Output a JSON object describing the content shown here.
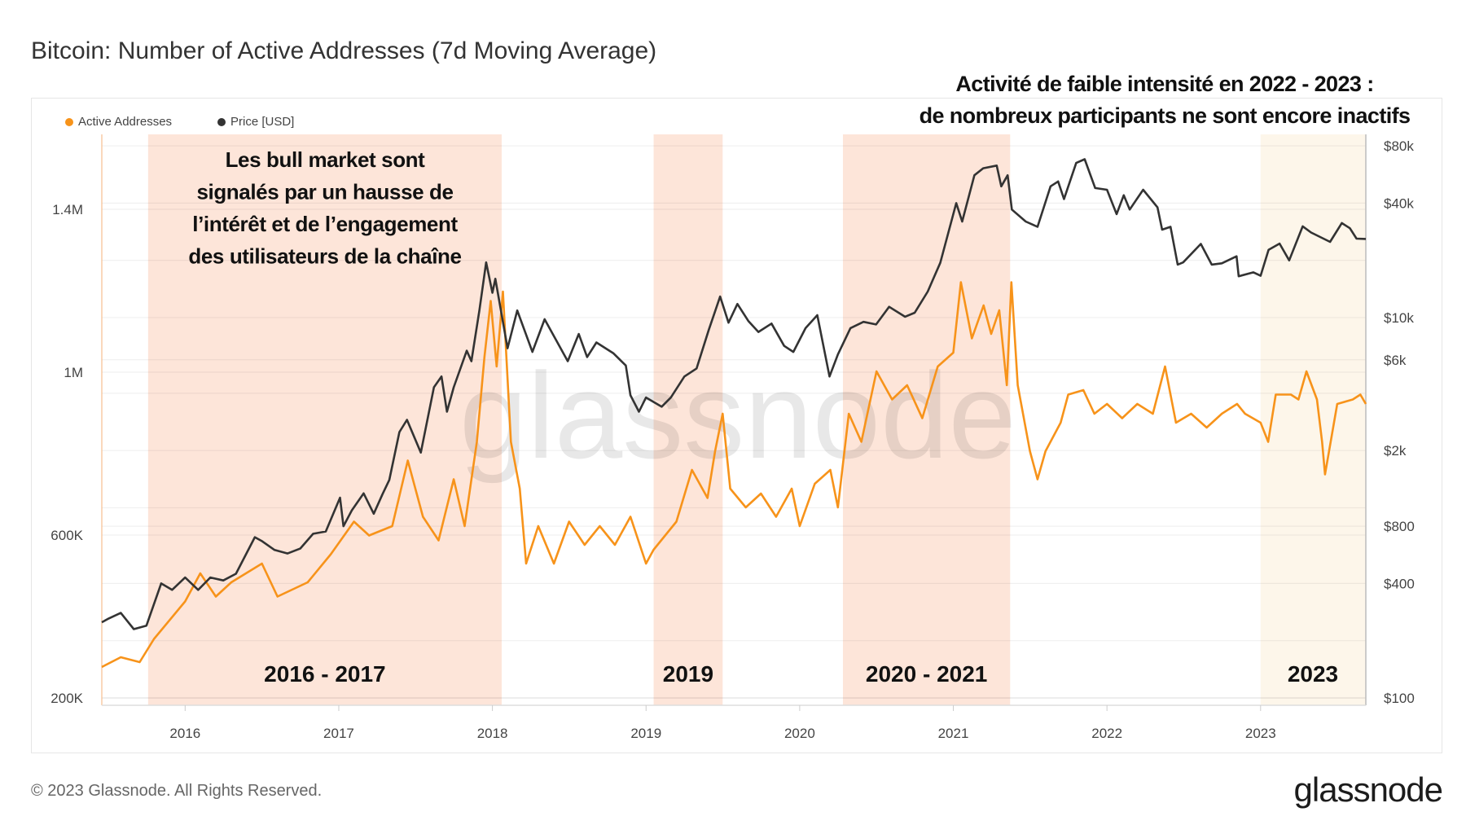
{
  "title": "Bitcoin: Number of Active Addresses (7d Moving Average)",
  "annotation_top": [
    "Activité de faible intensité en 2022 - 2023 :",
    "de nombreux participants ne sont encore inactifs"
  ],
  "annotation_inside": [
    "Les bull market sont",
    "signalés par un hausse de",
    "l’intérêt et de l’engagement",
    "des utilisateurs de la chaîne"
  ],
  "footer": "© 2023 Glassnode. All Rights Reserved.",
  "logo": "glassnode",
  "watermark": "glassnode",
  "colors": {
    "active_addresses": "#f7931a",
    "price": "#333333",
    "bull_band": "#fde5d9",
    "band_2023": "#fdf6ea"
  },
  "chart_data": {
    "type": "line",
    "title": "Bitcoin: Number of Active Addresses (7d Moving Average)",
    "legend": {
      "placement": "top-left",
      "entries": [
        "Active Addresses",
        "Price [USD]"
      ]
    },
    "grid": true,
    "x": {
      "type": "date",
      "range": [
        "2015-06-17",
        "2023-09-08"
      ],
      "ticks": [
        "2016",
        "2017",
        "2018",
        "2019",
        "2020",
        "2021",
        "2022",
        "2023"
      ]
    },
    "y_left": {
      "scale": "linear",
      "range": [
        182000,
        1584000
      ],
      "ticks": [
        {
          "v": 200000,
          "label": "200K"
        },
        {
          "v": 600000,
          "label": "600K"
        },
        {
          "v": 1000000,
          "label": "1M"
        },
        {
          "v": 1400000,
          "label": "1.4M"
        }
      ]
    },
    "y_right": {
      "scale": "log",
      "range": [
        91.5,
        91900
      ],
      "ticks": [
        {
          "v": 100,
          "label": "$100"
        },
        {
          "v": 400,
          "label": "$400"
        },
        {
          "v": 800,
          "label": "$800"
        },
        {
          "v": 2000,
          "label": "$2k"
        },
        {
          "v": 6000,
          "label": "$6k"
        },
        {
          "v": 10000,
          "label": "$10k"
        },
        {
          "v": 40000,
          "label": "$40k"
        },
        {
          "v": 80000,
          "label": "$80k"
        }
      ]
    },
    "bands": [
      {
        "label": "2016 - 2017",
        "start": "2015-10-05",
        "end": "2018-01-23",
        "kind": "bull"
      },
      {
        "label": "2019",
        "start": "2019-01-19",
        "end": "2019-07-02",
        "kind": "bull"
      },
      {
        "label": "2020 - 2021",
        "start": "2020-04-13",
        "end": "2021-05-16",
        "kind": "bull"
      },
      {
        "label": "2023",
        "start": "2023-01-01",
        "end": "2023-09-08",
        "kind": "recent"
      }
    ],
    "series": [
      {
        "name": "Active Addresses",
        "axis": "left",
        "points": [
          [
            "2015-06-17",
            276000
          ],
          [
            "2015-08-01",
            300000
          ],
          [
            "2015-09-15",
            288000
          ],
          [
            "2015-10-19",
            345000
          ],
          [
            "2016-01-01",
            437000
          ],
          [
            "2016-02-06",
            506000
          ],
          [
            "2016-03-14",
            449000
          ],
          [
            "2016-04-20",
            484000
          ],
          [
            "2016-07-02",
            530000
          ],
          [
            "2016-08-08",
            449000
          ],
          [
            "2016-10-19",
            484000
          ],
          [
            "2016-12-13",
            553000
          ],
          [
            "2017-02-06",
            633000
          ],
          [
            "2017-03-14",
            599000
          ],
          [
            "2017-05-08",
            622000
          ],
          [
            "2017-06-14",
            783000
          ],
          [
            "2017-07-20",
            645000
          ],
          [
            "2017-08-26",
            587000
          ],
          [
            "2017-10-01",
            737000
          ],
          [
            "2017-10-27",
            622000
          ],
          [
            "2017-11-25",
            829000
          ],
          [
            "2017-12-13",
            1037000
          ],
          [
            "2017-12-28",
            1175000
          ],
          [
            "2018-01-11",
            1014000
          ],
          [
            "2018-01-26",
            1198000
          ],
          [
            "2018-02-14",
            829000
          ],
          [
            "2018-03-07",
            714000
          ],
          [
            "2018-03-22",
            530000
          ],
          [
            "2018-04-20",
            622000
          ],
          [
            "2018-05-27",
            530000
          ],
          [
            "2018-07-02",
            633000
          ],
          [
            "2018-08-08",
            576000
          ],
          [
            "2018-09-13",
            622000
          ],
          [
            "2018-10-19",
            576000
          ],
          [
            "2018-11-25",
            645000
          ],
          [
            "2019-01-01",
            530000
          ],
          [
            "2019-01-19",
            564000
          ],
          [
            "2019-03-14",
            633000
          ],
          [
            "2019-04-20",
            760000
          ],
          [
            "2019-05-27",
            691000
          ],
          [
            "2019-06-14",
            806000
          ],
          [
            "2019-07-02",
            898000
          ],
          [
            "2019-07-20",
            714000
          ],
          [
            "2019-08-26",
            668000
          ],
          [
            "2019-10-01",
            702000
          ],
          [
            "2019-11-06",
            645000
          ],
          [
            "2019-12-13",
            714000
          ],
          [
            "2020-01-01",
            622000
          ],
          [
            "2020-02-06",
            726000
          ],
          [
            "2020-03-14",
            760000
          ],
          [
            "2020-04-01",
            668000
          ],
          [
            "2020-04-27",
            898000
          ],
          [
            "2020-05-27",
            829000
          ],
          [
            "2020-07-02",
            1002000
          ],
          [
            "2020-08-08",
            933000
          ],
          [
            "2020-09-13",
            968000
          ],
          [
            "2020-10-19",
            887000
          ],
          [
            "2020-11-25",
            1014000
          ],
          [
            "2021-01-01",
            1048000
          ],
          [
            "2021-01-19",
            1221000
          ],
          [
            "2021-02-14",
            1083000
          ],
          [
            "2021-03-14",
            1164000
          ],
          [
            "2021-04-01",
            1094000
          ],
          [
            "2021-04-20",
            1152000
          ],
          [
            "2021-05-08",
            968000
          ],
          [
            "2021-05-19",
            1221000
          ],
          [
            "2021-06-03",
            968000
          ],
          [
            "2021-07-02",
            806000
          ],
          [
            "2021-07-20",
            737000
          ],
          [
            "2021-08-08",
            806000
          ],
          [
            "2021-09-13",
            876000
          ],
          [
            "2021-10-01",
            945000
          ],
          [
            "2021-11-06",
            956000
          ],
          [
            "2021-12-02",
            898000
          ],
          [
            "2022-01-01",
            922000
          ],
          [
            "2022-02-06",
            887000
          ],
          [
            "2022-03-14",
            922000
          ],
          [
            "2022-04-20",
            898000
          ],
          [
            "2022-05-19",
            1014000
          ],
          [
            "2022-06-14",
            876000
          ],
          [
            "2022-07-20",
            898000
          ],
          [
            "2022-08-26",
            864000
          ],
          [
            "2022-10-01",
            898000
          ],
          [
            "2022-11-06",
            922000
          ],
          [
            "2022-11-25",
            898000
          ],
          [
            "2023-01-01",
            876000
          ],
          [
            "2023-01-19",
            829000
          ],
          [
            "2023-02-06",
            945000
          ],
          [
            "2023-03-14",
            945000
          ],
          [
            "2023-04-01",
            933000
          ],
          [
            "2023-04-20",
            1002000
          ],
          [
            "2023-05-15",
            933000
          ],
          [
            "2023-05-27",
            829000
          ],
          [
            "2023-06-03",
            749000
          ],
          [
            "2023-07-02",
            922000
          ],
          [
            "2023-08-08",
            933000
          ],
          [
            "2023-08-26",
            945000
          ],
          [
            "2023-09-08",
            922000
          ]
        ]
      },
      {
        "name": "Price [USD]",
        "axis": "right",
        "points": [
          [
            "2015-06-17",
            250
          ],
          [
            "2015-07-01",
            260
          ],
          [
            "2015-08-01",
            280
          ],
          [
            "2015-09-01",
            230
          ],
          [
            "2015-10-01",
            240
          ],
          [
            "2015-11-05",
            400
          ],
          [
            "2015-12-01",
            370
          ],
          [
            "2016-01-01",
            430
          ],
          [
            "2016-02-01",
            370
          ],
          [
            "2016-03-01",
            430
          ],
          [
            "2016-04-01",
            415
          ],
          [
            "2016-05-01",
            450
          ],
          [
            "2016-06-15",
            700
          ],
          [
            "2016-07-01",
            670
          ],
          [
            "2016-08-01",
            600
          ],
          [
            "2016-09-01",
            575
          ],
          [
            "2016-10-01",
            610
          ],
          [
            "2016-11-01",
            730
          ],
          [
            "2016-12-01",
            750
          ],
          [
            "2017-01-04",
            1130
          ],
          [
            "2017-01-12",
            800
          ],
          [
            "2017-02-01",
            970
          ],
          [
            "2017-03-01",
            1190
          ],
          [
            "2017-03-25",
            930
          ],
          [
            "2017-04-15",
            1180
          ],
          [
            "2017-05-01",
            1400
          ],
          [
            "2017-05-25",
            2500
          ],
          [
            "2017-06-12",
            2900
          ],
          [
            "2017-07-15",
            1950
          ],
          [
            "2017-08-15",
            4300
          ],
          [
            "2017-09-02",
            4900
          ],
          [
            "2017-09-15",
            3200
          ],
          [
            "2017-10-01",
            4300
          ],
          [
            "2017-11-01",
            6700
          ],
          [
            "2017-11-12",
            5900
          ],
          [
            "2017-12-01",
            10900
          ],
          [
            "2017-12-17",
            19500
          ],
          [
            "2018-01-01",
            13500
          ],
          [
            "2018-01-08",
            16000
          ],
          [
            "2018-02-06",
            6900
          ],
          [
            "2018-03-01",
            10900
          ],
          [
            "2018-04-06",
            6600
          ],
          [
            "2018-05-05",
            9800
          ],
          [
            "2018-06-29",
            5900
          ],
          [
            "2018-07-25",
            8200
          ],
          [
            "2018-08-14",
            6200
          ],
          [
            "2018-09-05",
            7400
          ],
          [
            "2018-10-15",
            6500
          ],
          [
            "2018-11-14",
            5600
          ],
          [
            "2018-11-25",
            3900
          ],
          [
            "2018-12-15",
            3200
          ],
          [
            "2019-01-01",
            3800
          ],
          [
            "2019-02-07",
            3400
          ],
          [
            "2019-03-01",
            3800
          ],
          [
            "2019-04-02",
            4900
          ],
          [
            "2019-05-01",
            5400
          ],
          [
            "2019-05-30",
            8600
          ],
          [
            "2019-06-26",
            12900
          ],
          [
            "2019-07-16",
            9400
          ],
          [
            "2019-08-06",
            11800
          ],
          [
            "2019-09-01",
            9600
          ],
          [
            "2019-09-25",
            8400
          ],
          [
            "2019-10-26",
            9300
          ],
          [
            "2019-11-25",
            7100
          ],
          [
            "2019-12-17",
            6600
          ],
          [
            "2020-01-15",
            8800
          ],
          [
            "2020-02-12",
            10300
          ],
          [
            "2020-03-12",
            4900
          ],
          [
            "2020-04-01",
            6400
          ],
          [
            "2020-05-01",
            8800
          ],
          [
            "2020-06-01",
            9500
          ],
          [
            "2020-07-01",
            9200
          ],
          [
            "2020-08-01",
            11400
          ],
          [
            "2020-09-08",
            10100
          ],
          [
            "2020-10-01",
            10600
          ],
          [
            "2020-11-01",
            13700
          ],
          [
            "2020-12-01",
            19400
          ],
          [
            "2021-01-08",
            40000
          ],
          [
            "2021-01-22",
            32000
          ],
          [
            "2021-02-20",
            56000
          ],
          [
            "2021-03-13",
            61000
          ],
          [
            "2021-04-14",
            63000
          ],
          [
            "2021-04-25",
            49000
          ],
          [
            "2021-05-10",
            56000
          ],
          [
            "2021-05-20",
            37000
          ],
          [
            "2021-06-22",
            32000
          ],
          [
            "2021-07-20",
            30000
          ],
          [
            "2021-08-20",
            49000
          ],
          [
            "2021-09-07",
            52000
          ],
          [
            "2021-09-21",
            42000
          ],
          [
            "2021-10-20",
            65000
          ],
          [
            "2021-11-09",
            68000
          ],
          [
            "2021-12-04",
            48000
          ],
          [
            "2022-01-01",
            47000
          ],
          [
            "2022-01-24",
            35000
          ],
          [
            "2022-02-10",
            44000
          ],
          [
            "2022-02-24",
            37000
          ],
          [
            "2022-03-28",
            47000
          ],
          [
            "2022-05-01",
            38000
          ],
          [
            "2022-05-12",
            29000
          ],
          [
            "2022-06-01",
            30000
          ],
          [
            "2022-06-18",
            19000
          ],
          [
            "2022-07-01",
            19500
          ],
          [
            "2022-08-12",
            24400
          ],
          [
            "2022-09-07",
            19000
          ],
          [
            "2022-10-01",
            19300
          ],
          [
            "2022-11-05",
            21000
          ],
          [
            "2022-11-10",
            16500
          ],
          [
            "2022-12-15",
            17300
          ],
          [
            "2023-01-01",
            16600
          ],
          [
            "2023-01-20",
            22700
          ],
          [
            "2023-02-15",
            24500
          ],
          [
            "2023-03-10",
            20000
          ],
          [
            "2023-04-11",
            30200
          ],
          [
            "2023-05-01",
            28000
          ],
          [
            "2023-06-15",
            25000
          ],
          [
            "2023-07-13",
            31400
          ],
          [
            "2023-08-01",
            29500
          ],
          [
            "2023-08-17",
            26000
          ],
          [
            "2023-09-08",
            25900
          ]
        ]
      }
    ]
  }
}
